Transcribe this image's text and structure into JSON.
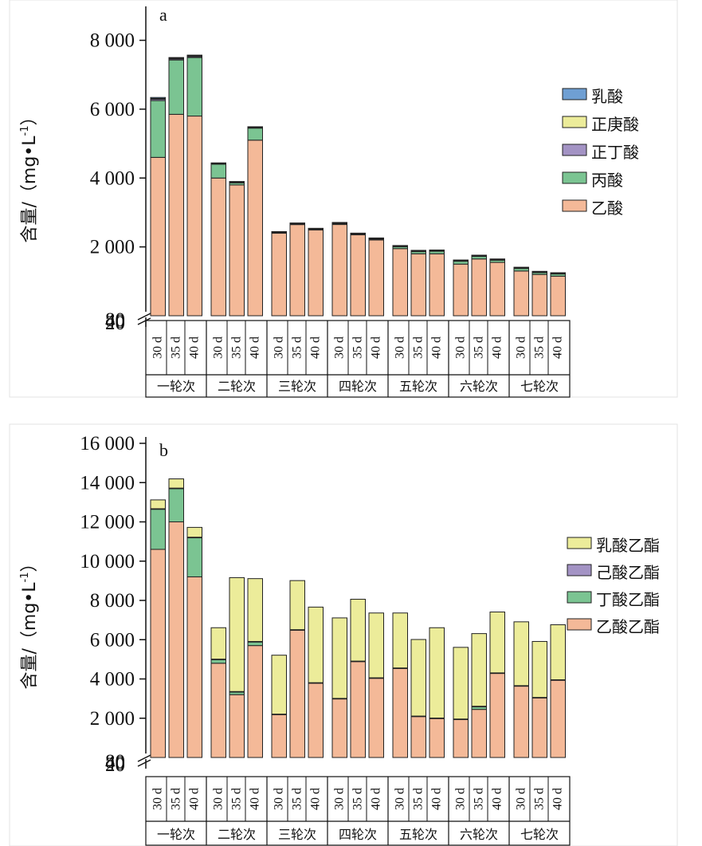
{
  "chart_data": [
    {
      "panel_label": "a",
      "type": "bar",
      "stacked": true,
      "ylabel": "含量/（mg•L",
      "ylabel_sup": "-1",
      "ylabel_close": "）",
      "ylim": [
        0,
        8800
      ],
      "yticks": [
        2000,
        4000,
        6000,
        8000
      ],
      "ytick_labels": [
        "2 000",
        "4 000",
        "6 000",
        "8 000"
      ],
      "broken_axis_labels": [
        "80",
        "40",
        "20"
      ],
      "groups": [
        "一轮次",
        "二轮次",
        "三轮次",
        "四轮次",
        "五轮次",
        "六轮次",
        "七轮次"
      ],
      "subcategories": [
        "30 d",
        "35 d",
        "40 d"
      ],
      "legend": [
        "乳酸",
        "正庚酸",
        "正丁酸",
        "丙酸",
        "乙酸"
      ],
      "series": [
        {
          "name": "乙酸",
          "color": "#f4b998",
          "values": [
            4600,
            5850,
            5800,
            4000,
            3800,
            5100,
            2400,
            2650,
            2500,
            2650,
            2350,
            2200,
            1950,
            1800,
            1800,
            1500,
            1650,
            1550,
            1300,
            1200,
            1150
          ]
        },
        {
          "name": "丙酸",
          "color": "#7bc492",
          "values": [
            1650,
            1580,
            1700,
            400,
            60,
            350,
            15,
            15,
            10,
            30,
            20,
            30,
            60,
            70,
            80,
            90,
            80,
            70,
            80,
            60,
            70
          ]
        },
        {
          "name": "正丁酸",
          "color": "#a393c4",
          "values": [
            40,
            30,
            30,
            20,
            20,
            20,
            10,
            10,
            10,
            10,
            10,
            10,
            10,
            10,
            10,
            10,
            10,
            10,
            10,
            10,
            10
          ]
        },
        {
          "name": "正庚酸",
          "color": "#ecec9a",
          "values": [
            20,
            20,
            20,
            10,
            10,
            10,
            10,
            10,
            10,
            10,
            10,
            10,
            10,
            10,
            10,
            10,
            10,
            10,
            10,
            10,
            10
          ]
        },
        {
          "name": "乳酸",
          "color": "#6f9fd3",
          "values": [
            30,
            20,
            20,
            10,
            10,
            10,
            10,
            10,
            10,
            10,
            10,
            10,
            10,
            10,
            10,
            10,
            10,
            10,
            10,
            10,
            10
          ]
        }
      ]
    },
    {
      "panel_label": "b",
      "type": "bar",
      "stacked": true,
      "ylabel": "含量/（mg•L",
      "ylabel_sup": "-1",
      "ylabel_close": "）",
      "ylim": [
        0,
        16000
      ],
      "yticks": [
        2000,
        4000,
        6000,
        8000,
        10000,
        12000,
        14000,
        16000
      ],
      "ytick_labels": [
        "2 000",
        "4 000",
        "6 000",
        "8 000",
        "10 000",
        "12 000",
        "14 000",
        "16 000"
      ],
      "broken_axis_labels": [
        "80",
        "40",
        "20"
      ],
      "groups": [
        "一轮次",
        "二轮次",
        "三轮次",
        "四轮次",
        "五轮次",
        "六轮次",
        "七轮次"
      ],
      "subcategories": [
        "30 d",
        "35 d",
        "40 d"
      ],
      "legend": [
        "乳酸乙酯",
        "己酸乙酯",
        "丁酸乙酯",
        "乙酸乙酯"
      ],
      "series": [
        {
          "name": "乙酸乙酯",
          "color": "#f4b998",
          "values": [
            10600,
            12000,
            9200,
            4800,
            3200,
            5700,
            2200,
            6500,
            3800,
            3000,
            4900,
            4050,
            4550,
            2100,
            2000,
            1950,
            2450,
            4300,
            3650,
            3050,
            3950
          ]
        },
        {
          "name": "丁酸乙酯",
          "color": "#7bc492",
          "values": [
            2050,
            1700,
            2000,
            200,
            150,
            200,
            0,
            0,
            0,
            0,
            0,
            0,
            0,
            0,
            0,
            0,
            150,
            0,
            0,
            0,
            0
          ]
        },
        {
          "name": "己酸乙酯",
          "color": "#a393c4",
          "values": [
            20,
            20,
            20,
            10,
            10,
            10,
            10,
            10,
            10,
            10,
            10,
            10,
            10,
            10,
            10,
            10,
            10,
            10,
            10,
            10,
            10
          ]
        },
        {
          "name": "乳酸乙酯",
          "color": "#ecec9a",
          "values": [
            450,
            470,
            500,
            1600,
            5800,
            3200,
            3000,
            2500,
            3850,
            4100,
            3150,
            3300,
            2800,
            3900,
            4600,
            3650,
            3700,
            3100,
            3250,
            2850,
            2800
          ]
        }
      ]
    }
  ]
}
